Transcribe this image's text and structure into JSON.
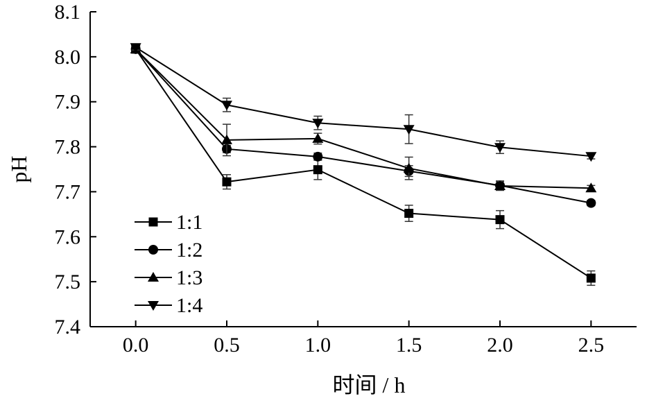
{
  "chart_data": {
    "type": "line",
    "xlabel": "时间 / h",
    "ylabel": "pH",
    "xlim": [
      -0.25,
      2.75
    ],
    "ylim": [
      7.4,
      8.1
    ],
    "x_ticks": [
      "0.0",
      "0.5",
      "1.0",
      "1.5",
      "2.0",
      "2.5"
    ],
    "y_ticks": [
      "7.4",
      "7.5",
      "7.6",
      "7.7",
      "7.8",
      "7.9",
      "8.0",
      "8.1"
    ],
    "x": [
      0.0,
      0.5,
      1.0,
      1.5,
      2.0,
      2.5
    ],
    "grid": false,
    "legend_position": "bottom-left",
    "series": [
      {
        "name": "1:1",
        "marker": "square",
        "values": [
          8.017,
          7.722,
          7.749,
          7.652,
          7.638,
          7.508
        ],
        "errors": [
          0.006,
          0.016,
          0.022,
          0.018,
          0.02,
          0.016
        ]
      },
      {
        "name": "1:2",
        "marker": "circle",
        "values": [
          8.017,
          7.795,
          7.778,
          7.746,
          7.714,
          7.675
        ],
        "errors": [
          0.006,
          0.008,
          0.008,
          0.012,
          0.01,
          0.006
        ]
      },
      {
        "name": "1:3",
        "marker": "triangle-up",
        "values": [
          8.017,
          7.815,
          7.818,
          7.752,
          7.713,
          7.708
        ],
        "errors": [
          0.006,
          0.035,
          0.012,
          0.025,
          0.01,
          0.006
        ]
      },
      {
        "name": "1:4",
        "marker": "triangle-down",
        "values": [
          8.021,
          7.893,
          7.853,
          7.839,
          7.799,
          7.779
        ],
        "errors": [
          0.006,
          0.015,
          0.015,
          0.032,
          0.014,
          0.006
        ]
      }
    ]
  }
}
